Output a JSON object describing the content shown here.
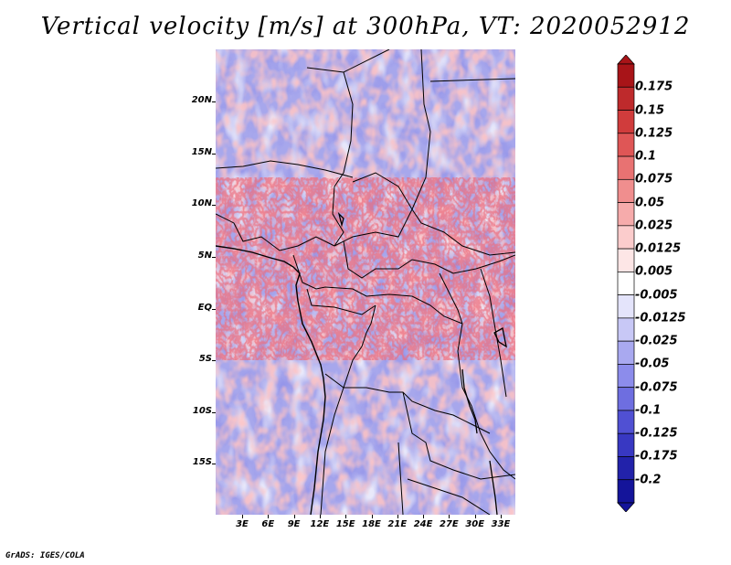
{
  "title": "Vertical velocity [m/s] at 300hPa, VT: 2020052912",
  "credit": "GrADS: IGES/COLA",
  "map": {
    "variable": "Vertical velocity",
    "units": "m/s",
    "level": "300hPa",
    "valid_time": "2020052912",
    "lat_ticks": [
      "20N",
      "15N",
      "10N",
      "5N",
      "EQ",
      "5S",
      "10S",
      "15S"
    ],
    "lon_ticks": [
      "3E",
      "6E",
      "9E",
      "12E",
      "15E",
      "18E",
      "21E",
      "24E",
      "27E",
      "30E",
      "33E"
    ]
  },
  "colorbar": {
    "labels": [
      "0.175",
      "0.15",
      "0.125",
      "0.1",
      "0.075",
      "0.05",
      "0.025",
      "0.0125",
      "0.005",
      "-0.005",
      "-0.0125",
      "-0.025",
      "-0.05",
      "-0.075",
      "-0.1",
      "-0.125",
      "-0.175",
      "-0.2"
    ],
    "colors": [
      "#a81418",
      "#be2a2c",
      "#d03c3c",
      "#df5656",
      "#e87272",
      "#f08e8e",
      "#f6abab",
      "#fbcccc",
      "#fde6e6",
      "#ffffff",
      "#e4e4fb",
      "#c8c8f6",
      "#a9a9f0",
      "#8c8ceb",
      "#6e6ee0",
      "#5050d3",
      "#3838c2",
      "#2222aa",
      "#14149a"
    ]
  }
}
